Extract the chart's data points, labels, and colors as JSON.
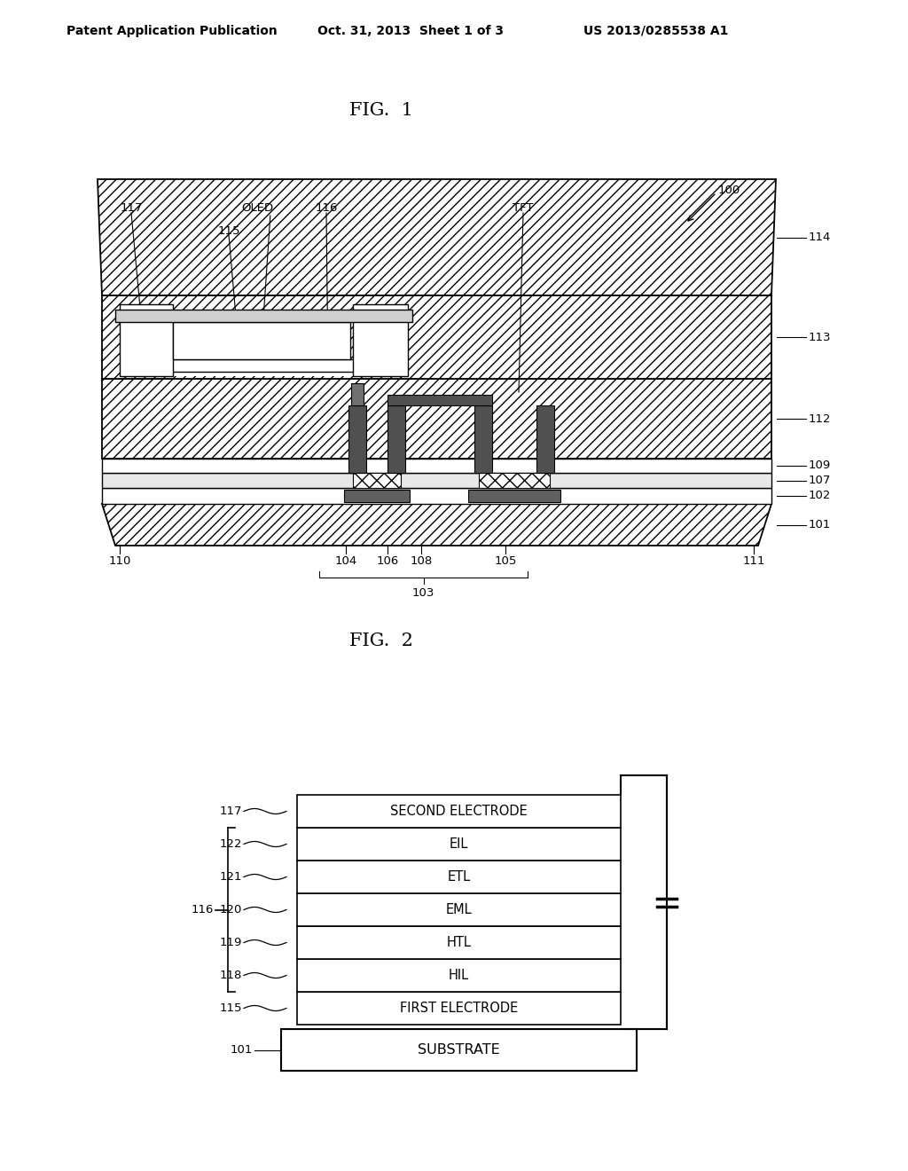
{
  "header_left": "Patent Application Publication",
  "header_mid": "Oct. 31, 2013  Sheet 1 of 3",
  "header_right": "US 2013/0285538 A1",
  "fig1_label": "FIG.  1",
  "fig2_label": "FIG.  2",
  "fig2_layers_bottom_to_top": [
    {
      "label": "FIRST ELECTRODE",
      "ref": "115"
    },
    {
      "label": "HIL",
      "ref": "118"
    },
    {
      "label": "HTL",
      "ref": "119"
    },
    {
      "label": "EML",
      "ref": "120"
    },
    {
      "label": "ETL",
      "ref": "121"
    },
    {
      "label": "EIL",
      "ref": "122"
    },
    {
      "label": "SECOND ELECTRODE",
      "ref": "117"
    }
  ],
  "fig2_substrate": "SUBSTRATE",
  "fig2_substrate_ref": "101",
  "fig2_brace_ref": "116",
  "bg_color": "#ffffff",
  "line_color": "#000000"
}
